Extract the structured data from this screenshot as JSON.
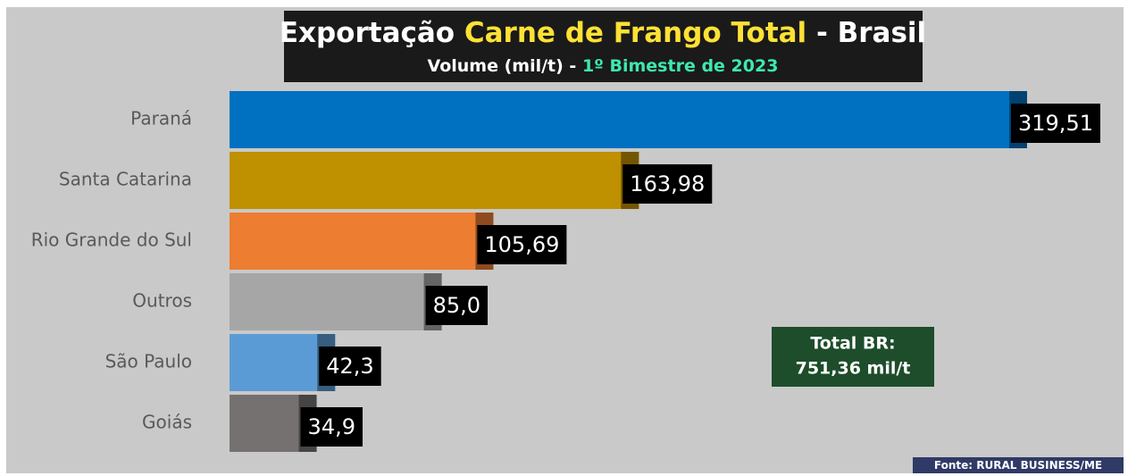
{
  "chart_data": {
    "type": "bar",
    "orientation": "horizontal",
    "title": [
      {
        "text": "Exportação",
        "color": "#ffffff"
      },
      {
        "text": "Carne de Frango Total",
        "color": "#ffe135"
      },
      {
        "text": "- Brasil",
        "color": "#ffffff"
      }
    ],
    "subtitle": [
      {
        "text": "Volume (mil/t) -",
        "color": "#ffffff"
      },
      {
        "text": "1º Bimestre de 2023",
        "color": "#3ee8b0"
      }
    ],
    "categories": [
      "Paraná",
      "Santa Catarina",
      "Rio Grande do Sul",
      "Outros",
      "São Paulo",
      "Goiás"
    ],
    "values": [
      319.51,
      163.98,
      105.69,
      85.0,
      42.3,
      34.9
    ],
    "value_labels": [
      "319,51",
      "163,98",
      "105,69",
      "85,0",
      "42,3",
      "34,9"
    ],
    "colors": [
      "#0070c0",
      "#bf9000",
      "#ed7d31",
      "#a6a6a6",
      "#5b9bd5",
      "#767171"
    ],
    "annotations": [
      "Total BR:",
      "751,36 mil/t"
    ],
    "source": "Fonte: RURAL BUSINESS/ME"
  }
}
